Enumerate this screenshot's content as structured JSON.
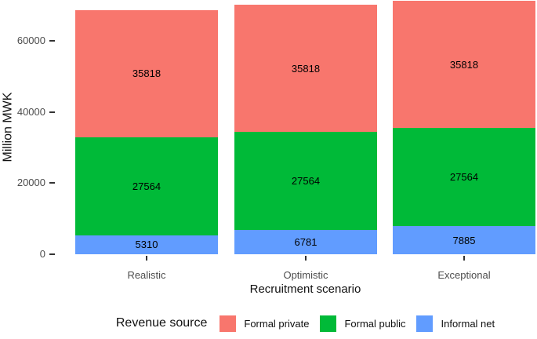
{
  "chart_data": {
    "type": "bar",
    "stacked": true,
    "title": "",
    "xlabel": "Recruitment scenario",
    "ylabel": "Million MWK",
    "categories": [
      "Realistic",
      "Optimistic",
      "Exceptional"
    ],
    "series": [
      {
        "name": "Informal net",
        "color": "#619CFF",
        "values": [
          5310,
          6781,
          7885
        ]
      },
      {
        "name": "Formal public",
        "color": "#00BA38",
        "values": [
          27564,
          27564,
          27564
        ]
      },
      {
        "name": "Formal private",
        "color": "#F8766D",
        "values": [
          35818,
          35818,
          35818
        ]
      }
    ],
    "totals": [
      68692,
      70163,
      71267
    ],
    "y_ticks": [
      0,
      20000,
      40000,
      60000
    ],
    "ylim": [
      0,
      71500
    ],
    "grid": false,
    "bar_value_labels": true,
    "legend": {
      "title": "Revenue source",
      "position": "bottom",
      "items": [
        "Formal private",
        "Formal public",
        "Informal net"
      ]
    },
    "colors": {
      "tick_label": "#4D4D4D",
      "axis_title": "#111111",
      "value_label": "#000000",
      "tick_mark": "#333333",
      "background": "#FFFFFF"
    }
  }
}
